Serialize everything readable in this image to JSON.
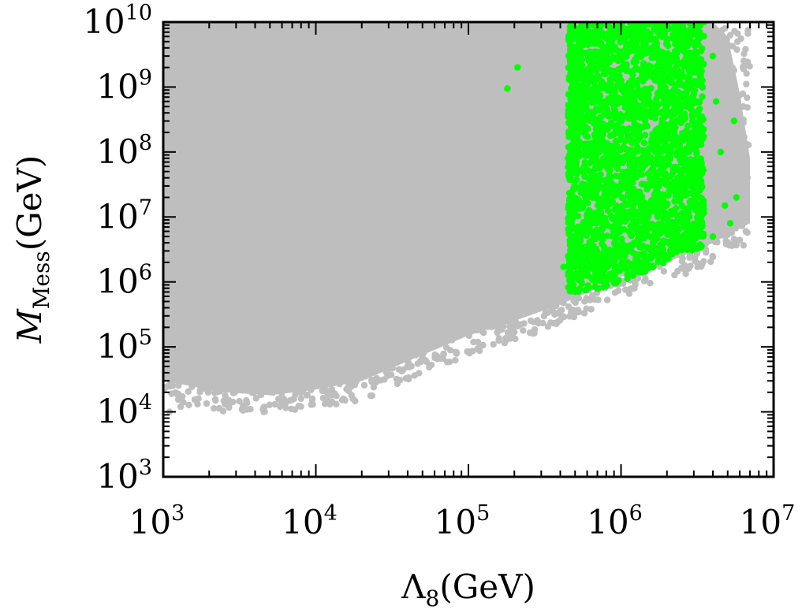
{
  "chart_data": {
    "type": "scatter",
    "x_scale": "log",
    "y_scale": "log",
    "xlim": [
      1000,
      10000000
    ],
    "ylim": [
      1000,
      10000000000
    ],
    "grid": false,
    "legend": "none",
    "xlabel": {
      "symbol": "Λ",
      "subscript": "8",
      "unit": "(GeV)"
    },
    "ylabel": {
      "symbol": "M",
      "subscript": "Mess",
      "unit": "(GeV)"
    },
    "x_ticks": [
      {
        "value": 1000,
        "base": "10",
        "exp": "3"
      },
      {
        "value": 10000,
        "base": "10",
        "exp": "4"
      },
      {
        "value": 100000,
        "base": "10",
        "exp": "5"
      },
      {
        "value": 1000000,
        "base": "10",
        "exp": "6"
      },
      {
        "value": 10000000,
        "base": "10",
        "exp": "7"
      }
    ],
    "y_ticks": [
      {
        "value": 1000,
        "base": "10",
        "exp": "3"
      },
      {
        "value": 10000,
        "base": "10",
        "exp": "4"
      },
      {
        "value": 100000,
        "base": "10",
        "exp": "5"
      },
      {
        "value": 1000000,
        "base": "10",
        "exp": "6"
      },
      {
        "value": 10000000,
        "base": "10",
        "exp": "7"
      },
      {
        "value": 100000000,
        "base": "10",
        "exp": "8"
      },
      {
        "value": 1000000000,
        "base": "10",
        "exp": "9"
      },
      {
        "value": 10000000000,
        "base": "10",
        "exp": "10"
      }
    ],
    "series": [
      {
        "color": "#bebebe",
        "region_lower_boundary": {
          "x": [
            1000,
            1500,
            2500,
            5000,
            10000,
            20000,
            40000,
            100000,
            200000,
            400000,
            700000,
            1000000,
            2000000,
            4000000,
            7000000
          ],
          "y": [
            30000,
            25000,
            20000,
            18000,
            22000,
            30000,
            60000,
            150000,
            250000,
            450000,
            800000,
            1200000,
            2000000,
            4000000,
            8000000
          ]
        },
        "region_upper_boundary": {
          "x": [
            4000000,
            5000000,
            6000000,
            7000000
          ],
          "y": [
            10000000000,
            6000000000,
            800000000,
            80000000
          ]
        },
        "points": [
          {
            "x": 1100,
            "y": 10000
          },
          {
            "x": 1300,
            "y": 12000
          },
          {
            "x": 1700,
            "y": 16000
          },
          {
            "x": 2200,
            "y": 15000
          },
          {
            "x": 2800,
            "y": 14000
          },
          {
            "x": 3500,
            "y": 15000
          },
          {
            "x": 4500,
            "y": 11000
          },
          {
            "x": 6000,
            "y": 13000
          },
          {
            "x": 8000,
            "y": 16000
          },
          {
            "x": 12000,
            "y": 20000
          },
          {
            "x": 18000,
            "y": 26000
          },
          {
            "x": 25000,
            "y": 33000
          },
          {
            "x": 35000,
            "y": 45000
          },
          {
            "x": 50000,
            "y": 70000
          },
          {
            "x": 6500000,
            "y": 11000000
          },
          {
            "x": 6000000,
            "y": 60000000
          },
          {
            "x": 5500000,
            "y": 1800000000
          },
          {
            "x": 6000000,
            "y": 25000000
          },
          {
            "x": 5000000,
            "y": 200000000
          },
          {
            "x": 5800000,
            "y": 5000000000
          }
        ]
      },
      {
        "color": "#00ff00",
        "region": {
          "x_range": [
            450000,
            3500000
          ],
          "y_lower_at_x": {
            "x": [
              450000,
              600000,
              800000,
              1000000,
              1500000,
              2000000,
              3000000,
              3500000
            ],
            "y": [
              700000,
              700000,
              800000,
              1000000,
              1500000,
              2000000,
              3000000,
              3500000
            ]
          },
          "y_upper": 10000000000
        },
        "points": [
          {
            "x": 180000,
            "y": 950000000
          },
          {
            "x": 210000,
            "y": 2000000000
          },
          {
            "x": 420000,
            "y": 1700000
          },
          {
            "x": 3500000,
            "y": 10000000000
          },
          {
            "x": 4000000,
            "y": 3000000000
          },
          {
            "x": 4200000,
            "y": 600000000
          },
          {
            "x": 4500000,
            "y": 100000000
          },
          {
            "x": 4800000,
            "y": 15000000
          },
          {
            "x": 5200000,
            "y": 8000000
          },
          {
            "x": 5500000,
            "y": 300000000
          },
          {
            "x": 5700000,
            "y": 20000000
          },
          {
            "x": 4000000,
            "y": 5000000
          }
        ]
      }
    ]
  }
}
